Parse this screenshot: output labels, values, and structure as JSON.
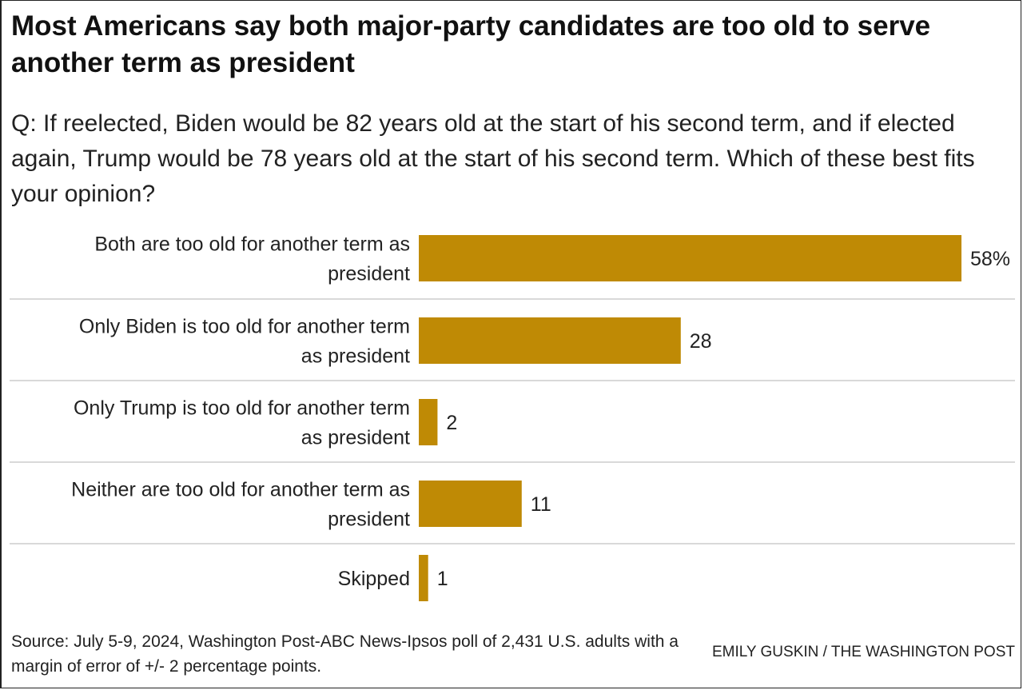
{
  "title": "Most Americans say both major-party candidates are too old to serve another term as president",
  "subtitle": "Q: If reelected, Biden would be 82 years old at the start of his second term, and if elected again, Trump would be 78 years old at the start of his second term. Which of these best fits your opinion?",
  "source": "Source: July 5-9, 2024, Washington Post-ABC News-Ipsos poll of 2,431 U.S. adults with a margin of error of +/- 2 percentage points.",
  "credit": "EMILY GUSKIN / THE WASHINGTON POST",
  "colors": {
    "bar": "#bf8a05",
    "divider": "#d9d9d9"
  },
  "chart_data": {
    "type": "bar",
    "orientation": "horizontal",
    "categories": [
      [
        "Both are too old for another term as",
        "president"
      ],
      [
        "Only Biden is too old for another term",
        "as president"
      ],
      [
        "Only Trump is too old for another term",
        "as president"
      ],
      [
        "Neither are too old for another term as",
        "president"
      ],
      [
        "Skipped"
      ]
    ],
    "values": [
      58,
      28,
      2,
      11,
      1
    ],
    "value_labels": [
      "58%",
      "28",
      "2",
      "11",
      "1"
    ],
    "xlim": [
      0,
      58
    ],
    "grid": false
  }
}
